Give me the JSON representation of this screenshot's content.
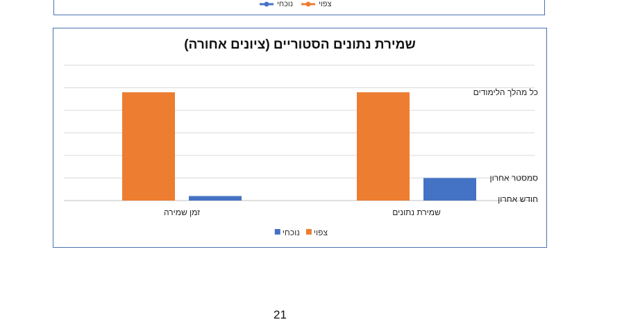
{
  "top_chart": {
    "legend": [
      {
        "name": "צפוי",
        "color": "#ed7d31"
      },
      {
        "name": "נוכחי",
        "color": "#4472c4"
      }
    ]
  },
  "chart_data": {
    "type": "bar",
    "title": "שמירת נתונים הסטוריים (ציונים אחורה)",
    "categories": [
      "שמירת נתונים",
      "זמן שמירה"
    ],
    "series": [
      {
        "name": "צפוי",
        "color": "#ed7d31",
        "values": [
          4.8,
          4.8
        ]
      },
      {
        "name": "נוכחי",
        "color": "#4472c4",
        "values": [
          1.0,
          0.2
        ]
      }
    ],
    "y_labels": [
      {
        "value": 0,
        "label": "חודש אחרון"
      },
      {
        "value": 1,
        "label": "סמסטר אחרון"
      },
      {
        "value": 4.8,
        "label": "כל מהלך הלימודים"
      }
    ],
    "ylim": [
      0,
      6
    ],
    "grid": true,
    "legend_position": "bottom"
  },
  "page_number": "21"
}
